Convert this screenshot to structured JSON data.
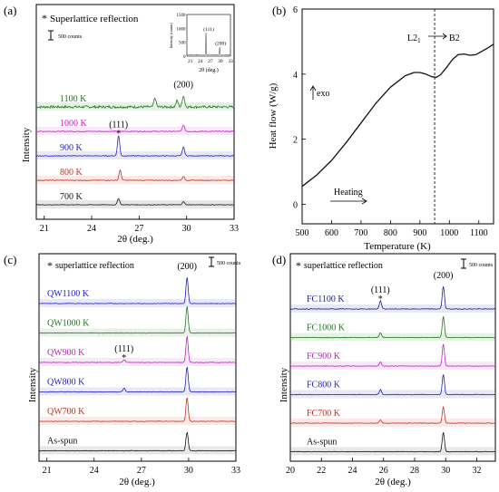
{
  "chart_data": [
    {
      "panel_label": "(a)",
      "type": "line",
      "xlabel": "2θ (deg.)",
      "ylabel": "Intensity",
      "xlim": [
        20.5,
        33
      ],
      "xticks": [
        "21",
        "24",
        "27",
        "30",
        "33"
      ],
      "legend_text": "Superlattice reflection",
      "scale_bar_label": "500 counts",
      "peak_labels": [
        {
          "label": "(200)",
          "x": 29.8,
          "series": "1100 K"
        },
        {
          "label": "(111)",
          "x": 25.7,
          "series": "900 K"
        }
      ],
      "series": [
        {
          "name": "1100 K",
          "color": "#1a7a1a",
          "peaks": [
            [
              28.0,
              0.7
            ],
            [
              29.8,
              0.9
            ],
            [
              29.4,
              0.5
            ]
          ],
          "noise": 0.45
        },
        {
          "name": "1000 K",
          "color": "#c020c0",
          "peaks": [
            [
              29.8,
              0.5
            ]
          ],
          "noise": 0.15
        },
        {
          "name": "900 K",
          "color": "#1c1cc8",
          "peaks": [
            [
              25.7,
              1.6
            ],
            [
              29.8,
              0.7
            ]
          ],
          "noise": 0.12
        },
        {
          "name": "800 K",
          "color": "#c03020",
          "peaks": [
            [
              25.8,
              0.8
            ],
            [
              29.8,
              0.3
            ]
          ],
          "noise": 0.12
        },
        {
          "name": "700 K",
          "color": "#111111",
          "peaks": [
            [
              25.7,
              0.5
            ],
            [
              29.8,
              0.25
            ]
          ],
          "noise": 0.1
        }
      ],
      "inset": {
        "xlabel": "2θ (deg.)",
        "ylabel": "Intensity (counts)",
        "xlim": [
          20,
          33
        ],
        "xticks": [
          "21",
          "24",
          "27",
          "30",
          "33"
        ],
        "ylim": [
          0,
          1500
        ],
        "yticks": [
          "0",
          "500",
          "1000",
          "1500"
        ],
        "peak_labels": [
          "(111)",
          "(200)"
        ],
        "peaks": [
          [
            25.7,
            800
          ],
          [
            29.8,
            300
          ]
        ]
      }
    },
    {
      "panel_label": "(b)",
      "type": "line",
      "xlabel": "Temperature (K)",
      "ylabel": "Heat flow (W/g)",
      "xlim": [
        500,
        1150
      ],
      "ylim": [
        -0.6,
        6
      ],
      "xticks": [
        "500",
        "600",
        "700",
        "800",
        "900",
        "1000",
        "1100"
      ],
      "yticks": [
        "0",
        "2",
        "4",
        "6"
      ],
      "annotations": {
        "exo": "exo",
        "heating": "Heating",
        "transition_from": "L2",
        "transition_sub": "1",
        "transition_to": "B2"
      },
      "transition_temperature": 950,
      "series": [
        {
          "name": "",
          "color": "#111111",
          "x": [
            500,
            550,
            600,
            650,
            700,
            750,
            800,
            850,
            880,
            900,
            920,
            940,
            955,
            970,
            990,
            1010,
            1030,
            1050,
            1070,
            1090,
            1110,
            1130,
            1150
          ],
          "y": [
            0.55,
            0.9,
            1.35,
            1.9,
            2.5,
            3.1,
            3.6,
            3.95,
            4.05,
            4.05,
            4.0,
            3.92,
            3.9,
            3.98,
            4.2,
            4.45,
            4.6,
            4.62,
            4.58,
            4.6,
            4.7,
            4.8,
            4.92
          ]
        }
      ]
    },
    {
      "panel_label": "(c)",
      "type": "line",
      "xlabel": "2θ (deg.)",
      "ylabel": "Intensity",
      "xlim": [
        20.5,
        33
      ],
      "xticks": [
        "21",
        "24",
        "27",
        "30",
        "33"
      ],
      "legend_text": "superlattice reflection",
      "scale_bar_label": "500 counts",
      "peak_labels": [
        {
          "label": "(200)",
          "x": 29.9,
          "series": "QW1100 K"
        },
        {
          "label": "(111)",
          "x": 25.9,
          "series": "QW900 K"
        }
      ],
      "series": [
        {
          "name": "QW1100 K",
          "color": "#1c1cc8",
          "peaks": [
            [
              29.9,
              3.6
            ]
          ],
          "noise": 0.1
        },
        {
          "name": "QW1000 K",
          "color": "#1a7a1a",
          "peaks": [
            [
              29.9,
              3.7
            ]
          ],
          "noise": 0.1
        },
        {
          "name": "QW900 K",
          "color": "#c020c0",
          "peaks": [
            [
              25.9,
              0.35
            ],
            [
              29.9,
              3.6
            ]
          ],
          "noise": 0.1
        },
        {
          "name": "QW800 K",
          "color": "#1c1cc8",
          "peaks": [
            [
              25.9,
              0.5
            ],
            [
              29.9,
              3.5
            ]
          ],
          "noise": 0.12
        },
        {
          "name": "QW700 K",
          "color": "#c03020",
          "peaks": [
            [
              29.9,
              3.3
            ]
          ],
          "noise": 0.1
        },
        {
          "name": "As-spun",
          "color": "#111111",
          "peaks": [
            [
              29.9,
              2.6
            ]
          ],
          "noise": 0.1
        }
      ]
    },
    {
      "panel_label": "(d)",
      "type": "line",
      "xlabel": "2θ (deg.)",
      "ylabel": "Intensity",
      "xlim": [
        20,
        33.2
      ],
      "xticks": [
        "20",
        "22",
        "24",
        "26",
        "28",
        "30",
        "32"
      ],
      "legend_text": "superlattice reflection",
      "scale_bar_label": "500 counts",
      "peak_labels": [
        {
          "label": "(111)",
          "x": 25.8,
          "series": "FC1100 K"
        },
        {
          "label": "(200)",
          "x": 29.85,
          "series": "FC1100 K"
        }
      ],
      "series": [
        {
          "name": "FC1100 K",
          "color": "#1c1c8c",
          "peaks": [
            [
              25.8,
              1.0
            ],
            [
              29.85,
              2.8
            ]
          ],
          "noise": 0.12
        },
        {
          "name": "FC1000 K",
          "color": "#1a7a1a",
          "peaks": [
            [
              25.8,
              0.6
            ],
            [
              29.85,
              2.6
            ]
          ],
          "noise": 0.1
        },
        {
          "name": "FC900 K",
          "color": "#c020c0",
          "peaks": [
            [
              25.8,
              0.5
            ],
            [
              29.85,
              2.7
            ]
          ],
          "noise": 0.1
        },
        {
          "name": "FC800 K",
          "color": "#1c1cc8",
          "peaks": [
            [
              25.8,
              0.6
            ],
            [
              29.85,
              2.5
            ]
          ],
          "noise": 0.1
        },
        {
          "name": "FC700 K",
          "color": "#c03020",
          "peaks": [
            [
              25.8,
              0.4
            ],
            [
              29.85,
              2.0
            ]
          ],
          "noise": 0.1
        },
        {
          "name": "As-spun",
          "color": "#111111",
          "peaks": [
            [
              29.85,
              2.4
            ]
          ],
          "noise": 0.1
        }
      ]
    }
  ]
}
